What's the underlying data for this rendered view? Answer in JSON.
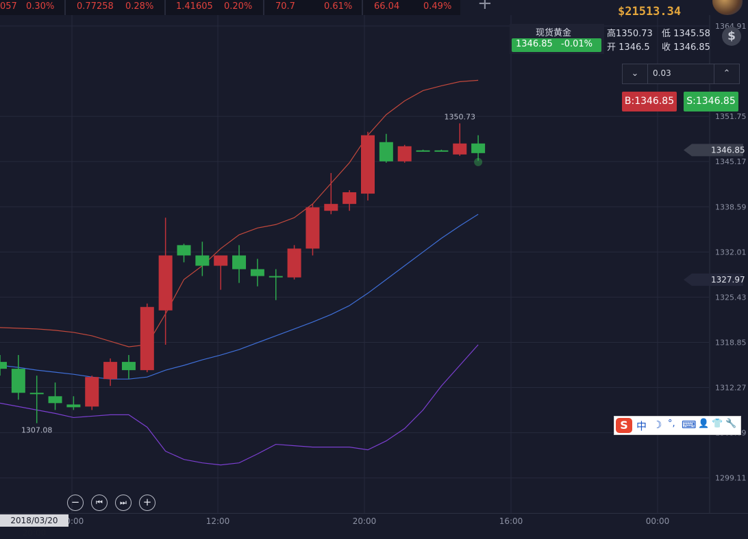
{
  "ticker": {
    "items": [
      {
        "value": "057",
        "change": "0.30%"
      },
      {
        "value": "0.77258",
        "change": "0.28%"
      },
      {
        "value": "1.41605",
        "change": "0.20%"
      },
      {
        "value": "70.7",
        "change": "0.61%"
      },
      {
        "value": "66.04",
        "change": "0.49%"
      }
    ]
  },
  "account": {
    "balance": "$21513.34"
  },
  "quote": {
    "name": "现货黄金",
    "price": "1346.85",
    "change": "-0.01%",
    "high_label": "高",
    "high": "1350.73",
    "low_label": "低",
    "low": "1345.58",
    "open_label": "开",
    "open": "1346.5",
    "close_label": "收",
    "close": "1346.85"
  },
  "trade": {
    "amount": "0.03",
    "buy_label": "B:1346.85",
    "sell_label": "S:1346.85"
  },
  "ime": {
    "items": [
      "中",
      "☽",
      "°,",
      "⌨",
      "👤",
      "👕",
      "🔧"
    ]
  },
  "cursor_date": "2018/03/20 20:00",
  "colors": {
    "up": "#2eaa4e",
    "down": "#c2323a",
    "band_upper": "#c2483c",
    "band_middle": "#3f6fd8",
    "band_lower": "#7b3fd0",
    "background": "#181b2b"
  },
  "chart_data": {
    "type": "candlestick",
    "ylim": [
      1294.0,
      1366.5
    ],
    "y_ticks": [
      "1364.91",
      "1351.75",
      "1345.17",
      "1338.59",
      "1332.01",
      "1325.43",
      "1318.85",
      "1312.27",
      "1305.69",
      "1299.11"
    ],
    "x_ticks": [
      "20:00",
      "12:00",
      "20:00",
      "16:00",
      "00:00"
    ],
    "price_tags": [
      "1346.85",
      "1327.97"
    ],
    "annotations": [
      "1350.73",
      "1307.08"
    ],
    "candles": [
      {
        "o": 1316.0,
        "h": 1317.0,
        "l": 1314.0,
        "c": 1315.0,
        "dir": "up"
      },
      {
        "o": 1315.0,
        "h": 1317.0,
        "l": 1310.5,
        "c": 1311.5,
        "dir": "up"
      },
      {
        "o": 1311.5,
        "h": 1314.0,
        "l": 1307.08,
        "c": 1311.3,
        "dir": "up"
      },
      {
        "o": 1311.0,
        "h": 1313.0,
        "l": 1309.0,
        "c": 1310.0,
        "dir": "up"
      },
      {
        "o": 1309.8,
        "h": 1311.0,
        "l": 1309.0,
        "c": 1309.4,
        "dir": "up"
      },
      {
        "o": 1309.5,
        "h": 1314.0,
        "l": 1309.0,
        "c": 1313.8,
        "dir": "down"
      },
      {
        "o": 1313.5,
        "h": 1316.5,
        "l": 1312.5,
        "c": 1316.0,
        "dir": "down"
      },
      {
        "o": 1316.0,
        "h": 1317.0,
        "l": 1313.5,
        "c": 1314.8,
        "dir": "up"
      },
      {
        "o": 1314.8,
        "h": 1324.5,
        "l": 1314.5,
        "c": 1324.0,
        "dir": "down"
      },
      {
        "o": 1323.5,
        "h": 1337.0,
        "l": 1318.5,
        "c": 1331.5,
        "dir": "down"
      },
      {
        "o": 1333.0,
        "h": 1333.2,
        "l": 1330.5,
        "c": 1331.5,
        "dir": "up"
      },
      {
        "o": 1331.5,
        "h": 1333.5,
        "l": 1328.5,
        "c": 1330.0,
        "dir": "up"
      },
      {
        "o": 1330.0,
        "h": 1331.5,
        "l": 1326.5,
        "c": 1331.5,
        "dir": "down"
      },
      {
        "o": 1331.5,
        "h": 1333.0,
        "l": 1327.5,
        "c": 1329.5,
        "dir": "up"
      },
      {
        "o": 1329.5,
        "h": 1331.0,
        "l": 1327.0,
        "c": 1328.5,
        "dir": "up"
      },
      {
        "o": 1328.5,
        "h": 1329.5,
        "l": 1325.0,
        "c": 1328.3,
        "dir": "up"
      },
      {
        "o": 1328.3,
        "h": 1333.0,
        "l": 1328.0,
        "c": 1332.5,
        "dir": "down"
      },
      {
        "o": 1332.5,
        "h": 1339.0,
        "l": 1331.5,
        "c": 1338.5,
        "dir": "down"
      },
      {
        "o": 1338.0,
        "h": 1343.5,
        "l": 1337.5,
        "c": 1339.0,
        "dir": "down"
      },
      {
        "o": 1339.0,
        "h": 1341.0,
        "l": 1338.0,
        "c": 1340.7,
        "dir": "down"
      },
      {
        "o": 1340.5,
        "h": 1349.5,
        "l": 1339.5,
        "c": 1349.0,
        "dir": "down"
      },
      {
        "o": 1348.0,
        "h": 1349.2,
        "l": 1345.0,
        "c": 1345.2,
        "dir": "up"
      },
      {
        "o": 1345.2,
        "h": 1347.6,
        "l": 1345.0,
        "c": 1347.4,
        "dir": "down"
      },
      {
        "o": 1346.8,
        "h": 1346.9,
        "l": 1346.7,
        "c": 1346.8,
        "dir": "up"
      },
      {
        "o": 1346.8,
        "h": 1346.9,
        "l": 1346.7,
        "c": 1346.8,
        "dir": "up"
      },
      {
        "o": 1346.2,
        "h": 1350.73,
        "l": 1346.0,
        "c": 1347.8,
        "dir": "down"
      },
      {
        "o": 1347.8,
        "h": 1349.0,
        "l": 1345.3,
        "c": 1346.4,
        "dir": "up"
      }
    ],
    "bands": {
      "upper": [
        1321.0,
        1320.9,
        1320.8,
        1320.6,
        1320.3,
        1319.8,
        1319.0,
        1318.2,
        1318.5,
        1323.0,
        1328.0,
        1330.0,
        1332.5,
        1334.5,
        1335.5,
        1336.0,
        1337.0,
        1339.0,
        1342.0,
        1345.0,
        1349.0,
        1352.0,
        1354.0,
        1355.5,
        1356.2,
        1356.8,
        1357.0
      ],
      "middle": [
        1315.5,
        1315.2,
        1314.8,
        1314.5,
        1314.2,
        1313.8,
        1313.5,
        1313.5,
        1313.8,
        1314.8,
        1315.5,
        1316.3,
        1317.0,
        1317.8,
        1318.8,
        1319.8,
        1320.8,
        1321.8,
        1322.9,
        1324.2,
        1326.0,
        1328.0,
        1330.0,
        1332.0,
        1334.0,
        1335.8,
        1337.5
      ],
      "lower": [
        1310.0,
        1309.5,
        1309.0,
        1308.5,
        1307.9,
        1308.1,
        1308.3,
        1308.3,
        1306.5,
        1303.0,
        1301.8,
        1301.3,
        1301.0,
        1301.3,
        1302.6,
        1304.0,
        1303.8,
        1303.6,
        1303.6,
        1303.6,
        1303.2,
        1304.5,
        1306.3,
        1309.0,
        1312.5,
        1315.5,
        1318.5
      ]
    }
  }
}
